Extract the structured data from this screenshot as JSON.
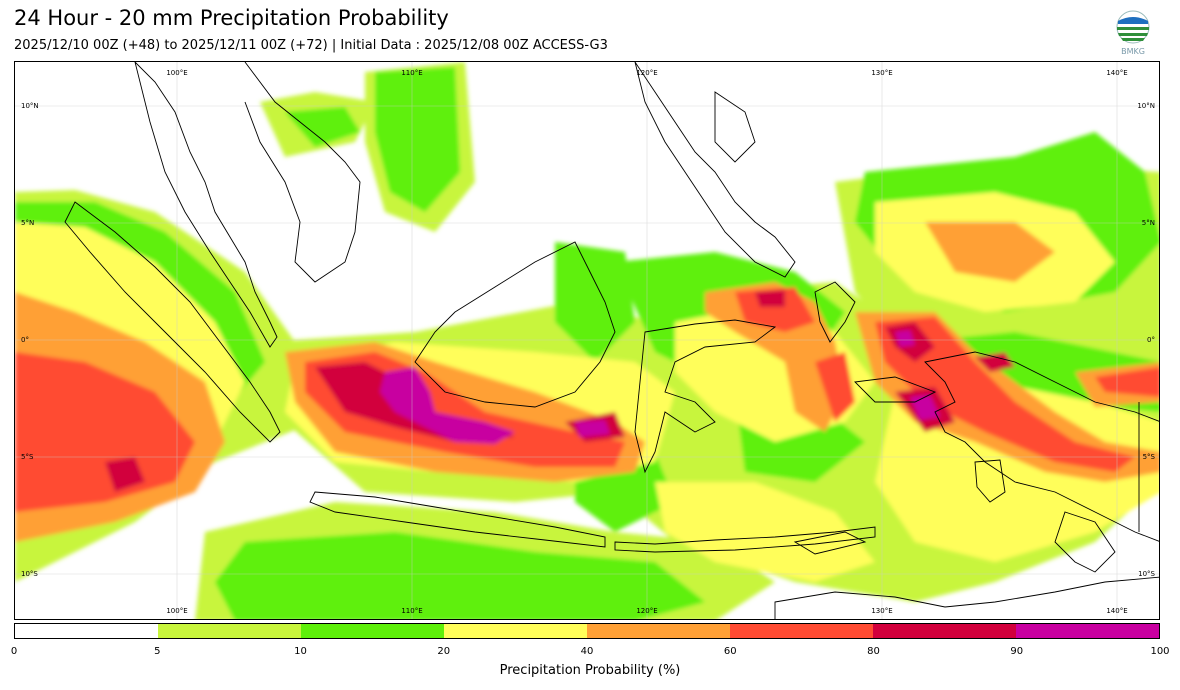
{
  "header": {
    "title": "24 Hour - 20 mm Precipitation Probability",
    "subtitle": "2025/12/10 00Z (+48) to 2025/12/11 00Z (+72) | Initial Data : 2025/12/08 00Z ACCESS-G3"
  },
  "logo": {
    "icon": "bmkg-logo-icon",
    "text": "BMKG"
  },
  "map": {
    "lon_labels_top": [
      "100°E",
      "110°E",
      "120°E",
      "130°E",
      "140°E"
    ],
    "lon_labels_bottom": [
      "100°E",
      "110°E",
      "120°E",
      "130°E",
      "140°E"
    ],
    "lat_labels_left": [
      "10°N",
      "5°N",
      "0°",
      "5°S",
      "10°S"
    ],
    "lat_labels_right": [
      "10°N",
      "5°N",
      "0°",
      "5°S",
      "10°S"
    ]
  },
  "colorbar": {
    "colors": [
      "#ffffff",
      "#c8f53c",
      "#5ef00a",
      "#fffe5a",
      "#ffa036",
      "#ff4b32",
      "#d2003c",
      "#c800a0"
    ],
    "ticks": [
      "0",
      "5",
      "10",
      "20",
      "40",
      "60",
      "80",
      "90",
      "100"
    ],
    "label": "Precipitation Probability (%)"
  }
}
